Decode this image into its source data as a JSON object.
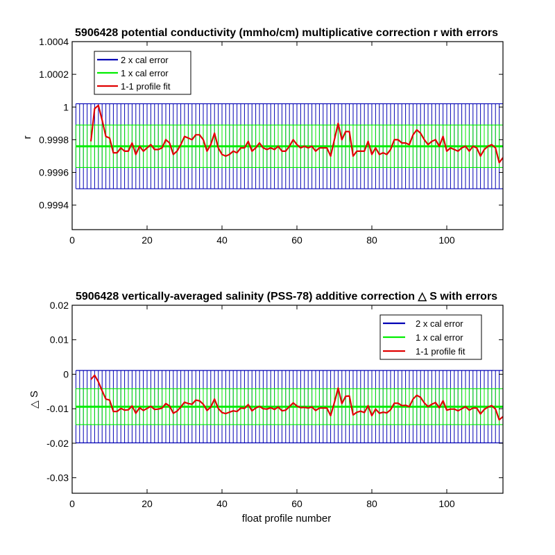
{
  "colors": {
    "two_x_cal_error": "#0000b4",
    "one_x_cal_error": "#00ee00",
    "profile_fit": "#e00000",
    "axes": "#000000",
    "background": "#ffffff"
  },
  "chart_data": [
    {
      "type": "line",
      "title": "5906428 potential conductivity (mmho/cm) multiplicative correction r with errors",
      "xlabel": "",
      "ylabel": "r",
      "xlim": [
        0,
        115
      ],
      "ylim": [
        0.99925,
        1.0004
      ],
      "xticks": [
        0,
        20,
        40,
        60,
        80,
        100
      ],
      "xtick_labels": [
        "0",
        "20",
        "40",
        "60",
        "80",
        "100"
      ],
      "yticks": [
        0.9994,
        0.9996,
        0.9998,
        1.0,
        1.0002,
        1.0004
      ],
      "ytick_labels": [
        "0.9994",
        "0.9996",
        "0.9998",
        "1",
        "1.0002",
        "1.0004"
      ],
      "legend_position": "top-left",
      "grid": false,
      "error_bars": {
        "x_start": 1,
        "x_end": 115,
        "center": 0.99976,
        "one_x_half_width": 0.00013,
        "two_x_half_width": 0.00026
      },
      "series": [
        {
          "name": "2 x cal error",
          "color_key": "two_x_cal_error",
          "values": []
        },
        {
          "name": "1 x cal error",
          "color_key": "one_x_cal_error",
          "values": []
        },
        {
          "name": "1-1 profile fit",
          "color_key": "profile_fit",
          "x": [
            5,
            6,
            7,
            8,
            9,
            10,
            11,
            12,
            13,
            14,
            15,
            16,
            17,
            18,
            19,
            20,
            21,
            22,
            23,
            24,
            25,
            26,
            27,
            28,
            29,
            30,
            31,
            32,
            33,
            34,
            35,
            36,
            37,
            38,
            39,
            40,
            41,
            42,
            43,
            44,
            45,
            46,
            47,
            48,
            49,
            50,
            51,
            52,
            53,
            54,
            55,
            56,
            57,
            58,
            59,
            60,
            61,
            62,
            63,
            64,
            65,
            66,
            67,
            68,
            69,
            70,
            71,
            72,
            73,
            74,
            75,
            76,
            77,
            78,
            79,
            80,
            81,
            82,
            83,
            84,
            85,
            86,
            87,
            88,
            89,
            90,
            91,
            92,
            93,
            94,
            95,
            96,
            97,
            98,
            99,
            100,
            101,
            102,
            103,
            104,
            105,
            106,
            107,
            108,
            109,
            110,
            111,
            112,
            113,
            114,
            115
          ],
          "values": [
            0.99979,
            0.99999,
            1.00001,
            0.99992,
            0.99982,
            0.99981,
            0.99972,
            0.99972,
            0.99975,
            0.99973,
            0.99973,
            0.99978,
            0.99971,
            0.99976,
            0.99973,
            0.99975,
            0.99977,
            0.99974,
            0.99974,
            0.99975,
            0.9998,
            0.99978,
            0.99971,
            0.99973,
            0.99977,
            0.99982,
            0.99981,
            0.9998,
            0.99983,
            0.99983,
            0.9998,
            0.99973,
            0.99977,
            0.99984,
            0.99975,
            0.99971,
            0.9997,
            0.99971,
            0.99973,
            0.99972,
            0.99975,
            0.99975,
            0.99979,
            0.99973,
            0.99975,
            0.99978,
            0.99975,
            0.99974,
            0.99975,
            0.99974,
            0.99976,
            0.99973,
            0.99973,
            0.99976,
            0.9998,
            0.99977,
            0.99975,
            0.99976,
            0.99975,
            0.99976,
            0.99973,
            0.99975,
            0.99975,
            0.99975,
            0.9997,
            0.9998,
            0.9999,
            0.9998,
            0.99985,
            0.99985,
            0.9997,
            0.99973,
            0.99973,
            0.99973,
            0.99979,
            0.99971,
            0.99975,
            0.99971,
            0.99972,
            0.99971,
            0.99974,
            0.9998,
            0.9998,
            0.99978,
            0.99978,
            0.99977,
            0.99983,
            0.99986,
            0.99984,
            0.9998,
            0.99977,
            0.99979,
            0.9998,
            0.99976,
            0.99982,
            0.99973,
            0.99975,
            0.99974,
            0.99973,
            0.99975,
            0.99976,
            0.99973,
            0.99976,
            0.99975,
            0.9997,
            0.99974,
            0.99976,
            0.99977,
            0.99975,
            0.99966,
            0.99969
          ]
        }
      ]
    },
    {
      "type": "line",
      "title": "5906428 vertically-averaged salinity (PSS-78) additive correction △ S with errors",
      "xlabel": "float profile number",
      "ylabel": "△ S",
      "xlim": [
        0,
        115
      ],
      "ylim": [
        -0.0345,
        0.02
      ],
      "xticks": [
        0,
        20,
        40,
        60,
        80,
        100
      ],
      "xtick_labels": [
        "0",
        "20",
        "40",
        "60",
        "80",
        "100"
      ],
      "yticks": [
        -0.03,
        -0.02,
        -0.01,
        0,
        0.01,
        0.02
      ],
      "ytick_labels": [
        "-0.03",
        "-0.02",
        "-0.01",
        "0",
        "0.01",
        "0.02"
      ],
      "legend_position": "top-right",
      "grid": false,
      "error_bars": {
        "x_start": 1,
        "x_end": 115,
        "center": -0.0094,
        "one_x_half_width": 0.0052,
        "two_x_half_width": 0.0105
      },
      "series": [
        {
          "name": "2 x cal error",
          "color_key": "two_x_cal_error",
          "values": []
        },
        {
          "name": "1 x cal error",
          "color_key": "one_x_cal_error",
          "values": []
        },
        {
          "name": "1-1 profile fit",
          "color_key": "profile_fit",
          "x": [
            5,
            6,
            7,
            8,
            9,
            10,
            11,
            12,
            13,
            14,
            15,
            16,
            17,
            18,
            19,
            20,
            21,
            22,
            23,
            24,
            25,
            26,
            27,
            28,
            29,
            30,
            31,
            32,
            33,
            34,
            35,
            36,
            37,
            38,
            39,
            40,
            41,
            42,
            43,
            44,
            45,
            46,
            47,
            48,
            49,
            50,
            51,
            52,
            53,
            54,
            55,
            56,
            57,
            58,
            59,
            60,
            61,
            62,
            63,
            64,
            65,
            66,
            67,
            68,
            69,
            70,
            71,
            72,
            73,
            74,
            75,
            76,
            77,
            78,
            79,
            80,
            81,
            82,
            83,
            84,
            85,
            86,
            87,
            88,
            89,
            90,
            91,
            92,
            93,
            94,
            95,
            96,
            97,
            98,
            99,
            100,
            101,
            102,
            103,
            104,
            105,
            106,
            107,
            108,
            109,
            110,
            111,
            112,
            113,
            114,
            115
          ],
          "values": [
            -0.0015,
            -0.0003,
            -0.0022,
            -0.0048,
            -0.0072,
            -0.0075,
            -0.0108,
            -0.0108,
            -0.0099,
            -0.0104,
            -0.0103,
            -0.0092,
            -0.0113,
            -0.0097,
            -0.0105,
            -0.0099,
            -0.0093,
            -0.0102,
            -0.0101,
            -0.0098,
            -0.0085,
            -0.0092,
            -0.0113,
            -0.0107,
            -0.0095,
            -0.0081,
            -0.0085,
            -0.0087,
            -0.0075,
            -0.0077,
            -0.0087,
            -0.0105,
            -0.0095,
            -0.0072,
            -0.0099,
            -0.0111,
            -0.0114,
            -0.011,
            -0.0106,
            -0.0108,
            -0.0098,
            -0.0099,
            -0.0088,
            -0.0106,
            -0.0098,
            -0.0093,
            -0.01,
            -0.0101,
            -0.0097,
            -0.0102,
            -0.0095,
            -0.0106,
            -0.0104,
            -0.0094,
            -0.0083,
            -0.0092,
            -0.0097,
            -0.0096,
            -0.0098,
            -0.0095,
            -0.0105,
            -0.0098,
            -0.0098,
            -0.0098,
            -0.012,
            -0.0082,
            -0.004,
            -0.0085,
            -0.0064,
            -0.0063,
            -0.0118,
            -0.011,
            -0.0107,
            -0.0111,
            -0.0091,
            -0.012,
            -0.0101,
            -0.0113,
            -0.011,
            -0.0112,
            -0.0103,
            -0.0084,
            -0.0084,
            -0.0091,
            -0.009,
            -0.0094,
            -0.0072,
            -0.0061,
            -0.0067,
            -0.0083,
            -0.0094,
            -0.0087,
            -0.0082,
            -0.0097,
            -0.0077,
            -0.0104,
            -0.0101,
            -0.0101,
            -0.0106,
            -0.01,
            -0.0094,
            -0.0104,
            -0.0098,
            -0.0098,
            -0.0115,
            -0.0102,
            -0.0095,
            -0.0091,
            -0.0101,
            -0.0132,
            -0.0123
          ]
        }
      ]
    }
  ]
}
